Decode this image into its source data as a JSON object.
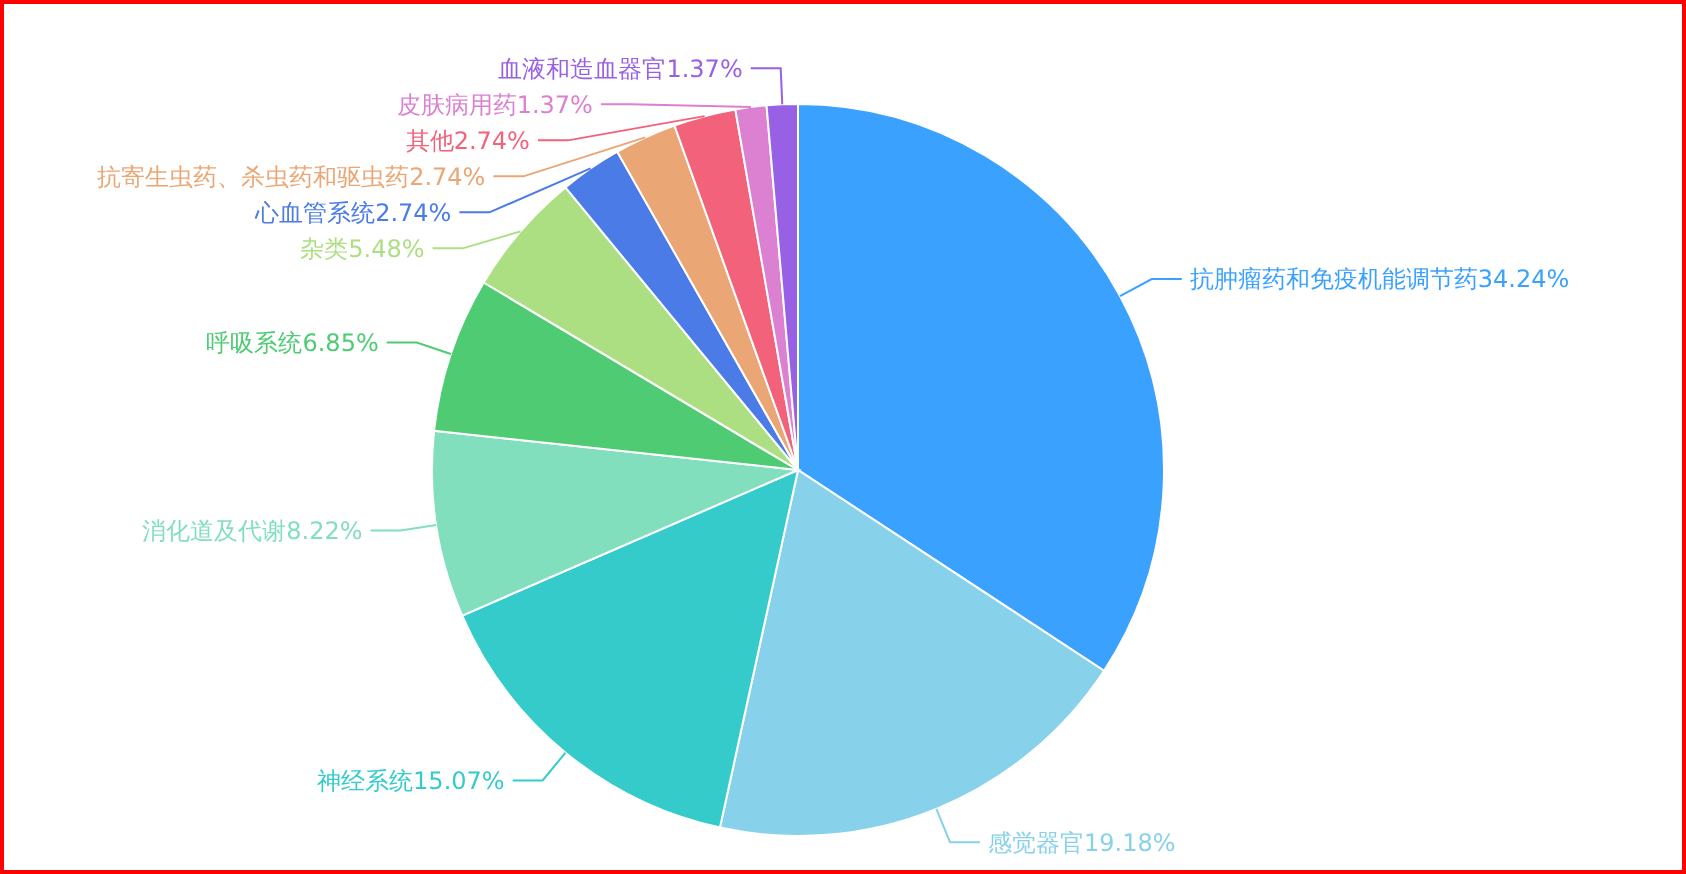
{
  "chart_data": {
    "type": "pie",
    "categories": [
      "抗肿瘤药和免疫机能调节药",
      "感觉器官",
      "神经系统",
      "消化道及代谢",
      "呼吸系统",
      "杂类",
      "心血管系统",
      "抗寄生虫药、杀虫药和驱虫药",
      "其他",
      "皮肤病用药",
      "血液和造血器官"
    ],
    "values": [
      34.24,
      19.18,
      15.07,
      8.22,
      6.85,
      5.48,
      2.74,
      2.74,
      2.74,
      1.37,
      1.37
    ],
    "value_labels": [
      "34.24%",
      "19.18%",
      "15.07%",
      "8.22%",
      "6.85%",
      "5.48%",
      "2.74%",
      "2.74%",
      "2.74%",
      "1.37%",
      "1.37%"
    ],
    "colors": [
      "#3ba1ff",
      "#88d1ea",
      "#36cbcb",
      "#82dfbe",
      "#4ecb73",
      "#acdf82",
      "#4a7be6",
      "#eaa674",
      "#f2637b",
      "#dc81d2",
      "#9860e5"
    ]
  }
}
